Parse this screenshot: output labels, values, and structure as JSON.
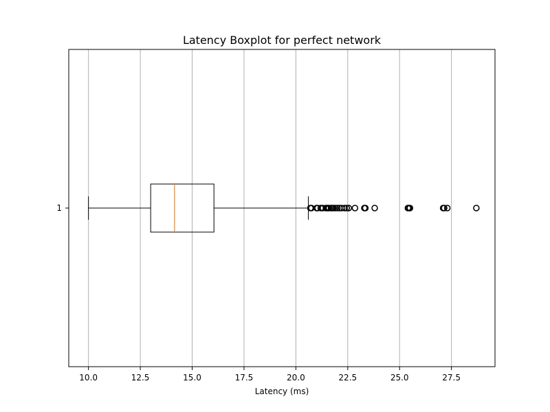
{
  "chart_data": {
    "type": "boxplot",
    "orientation": "horizontal",
    "title": "Latency Boxplot for perfect network",
    "xlabel": "Latency (ms)",
    "ylabel": "",
    "xlim": [
      9.05,
      29.6
    ],
    "x_ticks": [
      "10.0",
      "12.5",
      "15.0",
      "17.5",
      "20.0",
      "22.5",
      "25.0",
      "27.5"
    ],
    "x_tick_values": [
      10.0,
      12.5,
      15.0,
      17.5,
      20.0,
      22.5,
      25.0,
      27.5
    ],
    "y_ticks": [
      "1"
    ],
    "grid": "x-only",
    "colors": {
      "box": "#000000",
      "median": "#ff7f0e",
      "grid": "#b0b0b0",
      "flier": "#000000"
    },
    "series": [
      {
        "category": "1",
        "whisker_low": 10.0,
        "q1": 13.0,
        "median": 14.15,
        "q3": 16.05,
        "whisker_high": 20.6,
        "outliers": [
          20.7,
          20.75,
          21.0,
          21.05,
          21.2,
          21.3,
          21.45,
          21.5,
          21.55,
          21.6,
          21.7,
          21.75,
          21.8,
          21.9,
          22.0,
          22.1,
          22.2,
          22.35,
          22.45,
          22.55,
          22.85,
          23.3,
          23.35,
          23.8,
          25.4,
          25.45,
          25.5,
          27.1,
          27.15,
          27.3,
          28.7
        ]
      }
    ]
  }
}
